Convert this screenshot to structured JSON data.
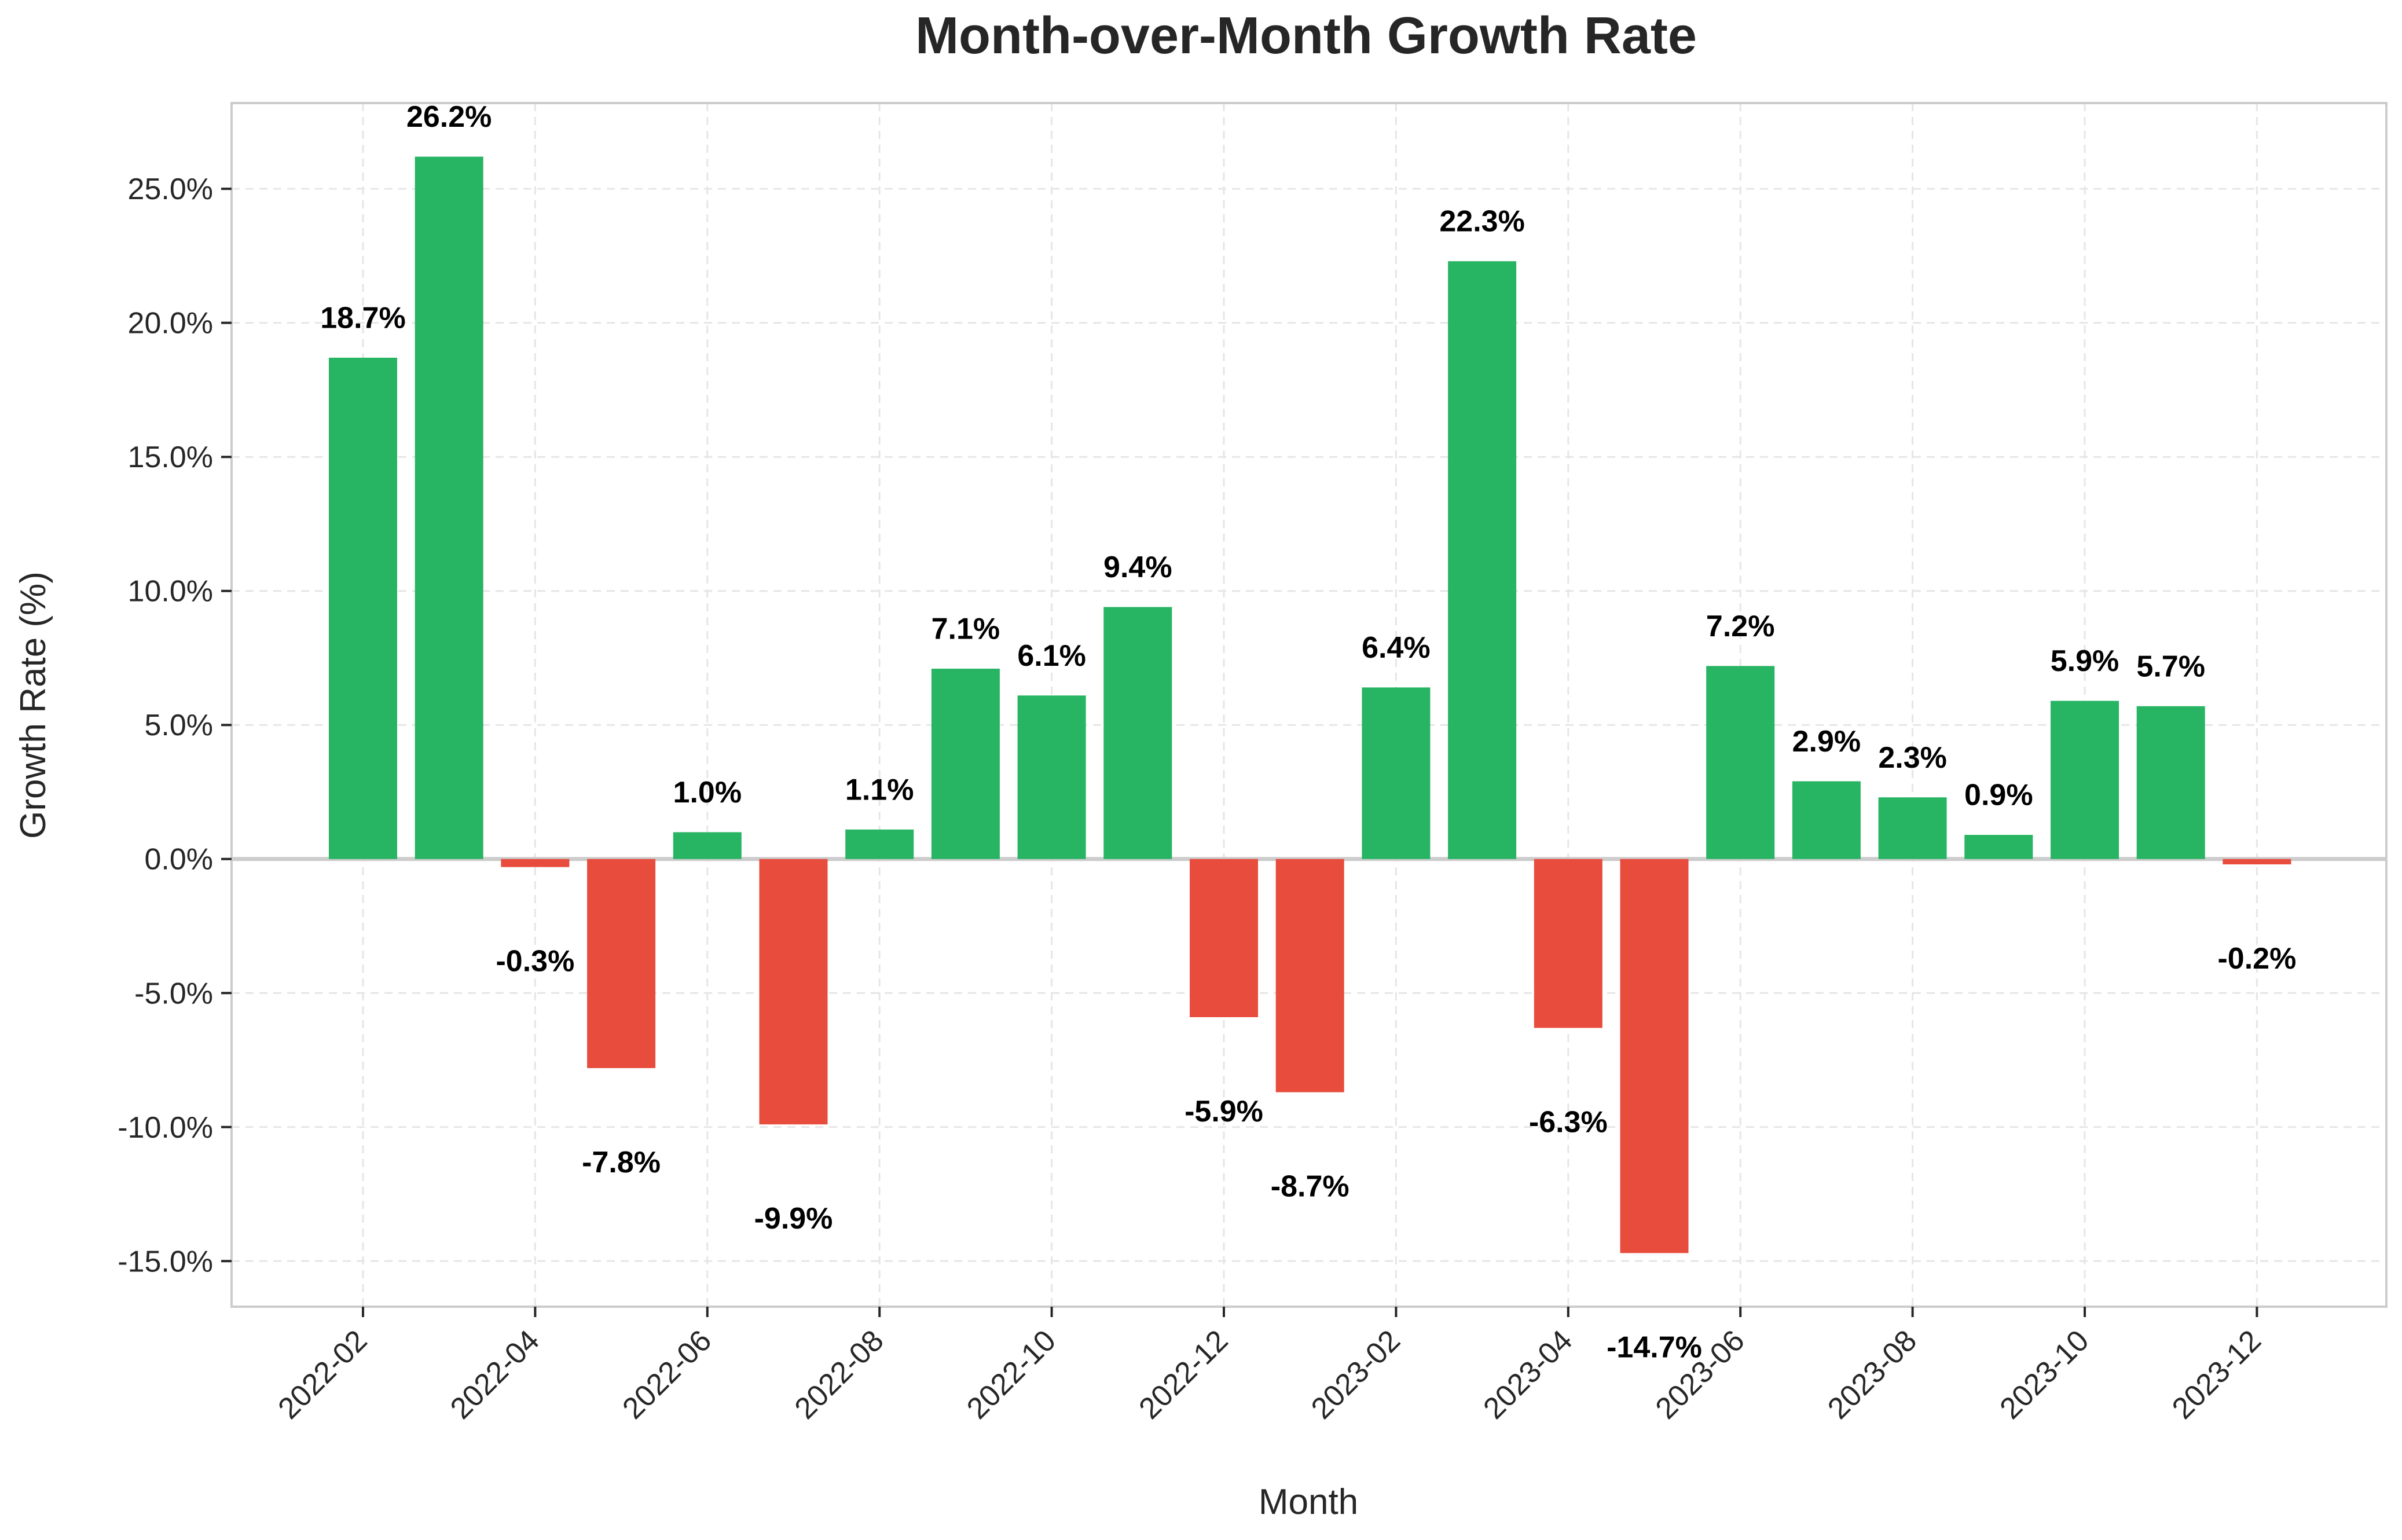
{
  "chart_data": {
    "type": "bar",
    "title": "Month-over-Month Growth Rate",
    "xlabel": "Month",
    "ylabel": "Growth Rate (%)",
    "categories": [
      "2022-02",
      "2022-03",
      "2022-04",
      "2022-05",
      "2022-06",
      "2022-07",
      "2022-08",
      "2022-09",
      "2022-10",
      "2022-11",
      "2022-12",
      "2023-01",
      "2023-02",
      "2023-03",
      "2023-04",
      "2023-05",
      "2023-06",
      "2023-07",
      "2023-08",
      "2023-09",
      "2023-10",
      "2023-11",
      "2023-12"
    ],
    "values": [
      18.7,
      26.2,
      -0.3,
      -7.8,
      1.0,
      -9.9,
      1.1,
      7.1,
      6.1,
      9.4,
      -5.9,
      -8.7,
      6.4,
      22.3,
      -6.3,
      -14.7,
      7.2,
      2.9,
      2.3,
      0.9,
      5.9,
      5.7,
      -0.2
    ],
    "data_labels": [
      "18.7%",
      "26.2%",
      "-0.3%",
      "-7.8%",
      "1.0%",
      "-9.9%",
      "1.1%",
      "7.1%",
      "6.1%",
      "9.4%",
      "-5.9%",
      "-8.7%",
      "6.4%",
      "22.3%",
      "-6.3%",
      "-14.7%",
      "7.2%",
      "2.9%",
      "2.3%",
      "0.9%",
      "5.9%",
      "5.7%",
      "-0.2%"
    ],
    "x_tick_labels": [
      "2022-02",
      "2022-04",
      "2022-06",
      "2022-08",
      "2022-10",
      "2022-12",
      "2023-02",
      "2023-04",
      "2023-06",
      "2023-08",
      "2023-10",
      "2023-12"
    ],
    "y_ticks": [
      -15,
      -10,
      -5,
      0,
      5,
      10,
      15,
      20,
      25
    ],
    "y_tick_labels": [
      "-15.0%",
      "-10.0%",
      "-5.0%",
      "0.0%",
      "5.0%",
      "10.0%",
      "15.0%",
      "20.0%",
      "25.0%"
    ],
    "ylim": [
      -16.7,
      28.2
    ],
    "grid": true,
    "colors": {
      "positive": "#27b463",
      "negative": "#e74c3c"
    }
  }
}
